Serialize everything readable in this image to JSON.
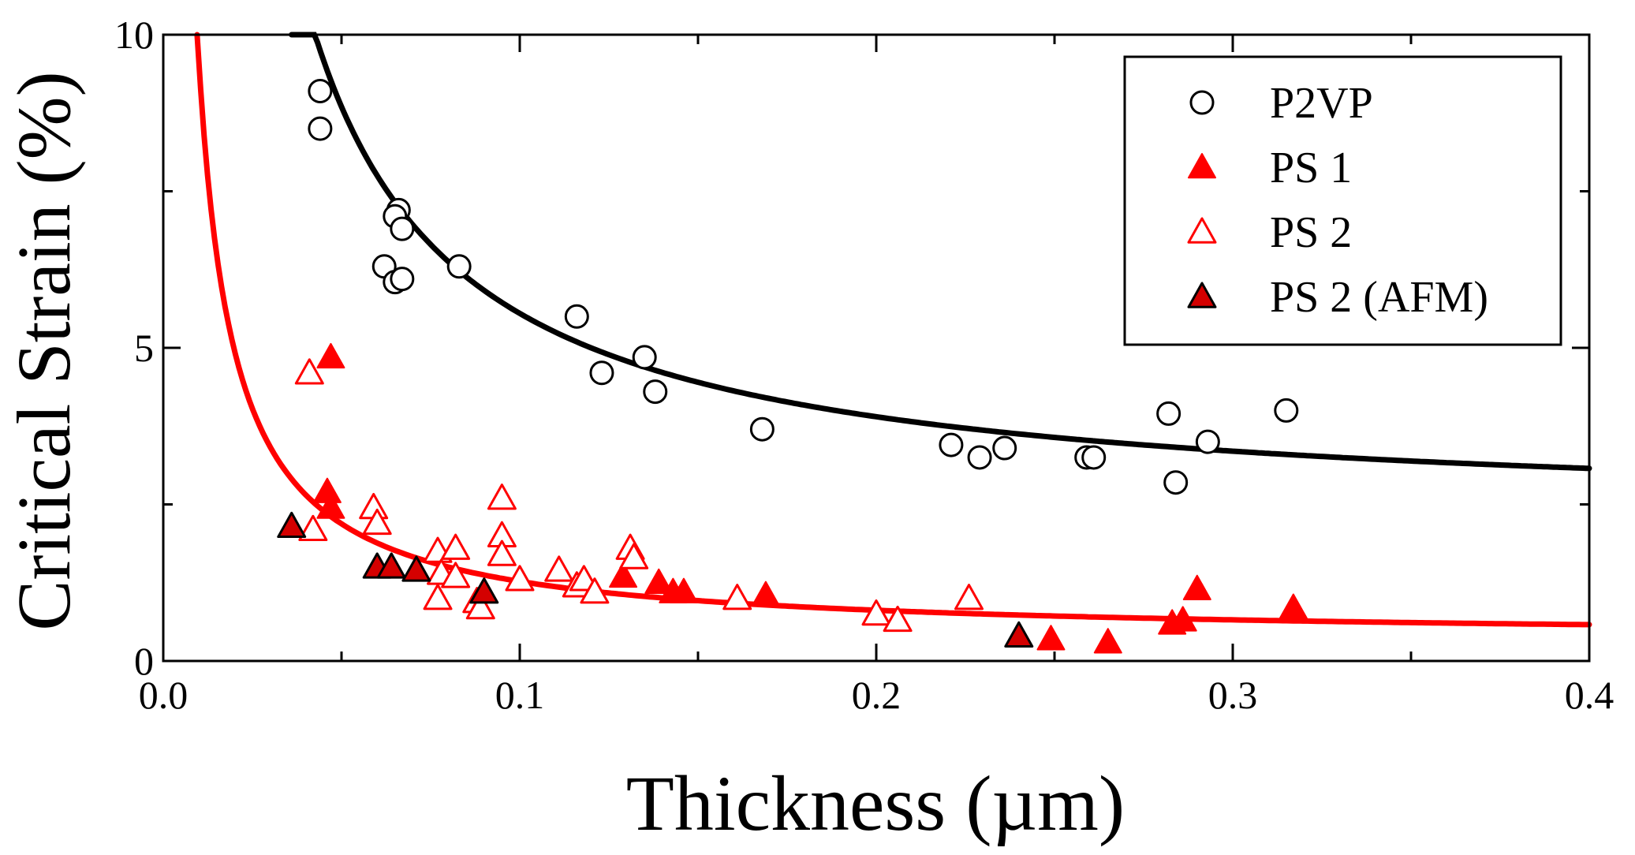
{
  "chart_data": {
    "type": "scatter",
    "title": "",
    "xlabel": "Thickness (µm)",
    "ylabel": "Critical Strain (%)",
    "xlim": [
      0.0,
      0.4
    ],
    "ylim": [
      0,
      10
    ],
    "xticks": [
      0.0,
      0.1,
      0.2,
      0.3,
      0.4
    ],
    "xtick_labels": [
      "0.0",
      "0.1",
      "0.2",
      "0.3",
      "0.4"
    ],
    "yticks": [
      0,
      5,
      10
    ],
    "ytick_labels": [
      "0",
      "5",
      "10"
    ],
    "legend_position": "top-right",
    "series": [
      {
        "name": "P2VP",
        "marker": "open-circle",
        "color": "#000000",
        "points": [
          [
            0.044,
            9.1
          ],
          [
            0.044,
            8.5
          ],
          [
            0.066,
            7.2
          ],
          [
            0.065,
            7.1
          ],
          [
            0.067,
            6.9
          ],
          [
            0.062,
            6.3
          ],
          [
            0.065,
            6.05
          ],
          [
            0.067,
            6.1
          ],
          [
            0.083,
            6.3
          ],
          [
            0.116,
            5.5
          ],
          [
            0.123,
            4.6
          ],
          [
            0.135,
            4.85
          ],
          [
            0.138,
            4.3
          ],
          [
            0.168,
            3.7
          ],
          [
            0.221,
            3.45
          ],
          [
            0.229,
            3.25
          ],
          [
            0.236,
            3.4
          ],
          [
            0.259,
            3.25
          ],
          [
            0.261,
            3.25
          ],
          [
            0.282,
            3.95
          ],
          [
            0.284,
            2.85
          ],
          [
            0.293,
            3.5
          ],
          [
            0.315,
            4.0
          ]
        ]
      },
      {
        "name": "PS 1",
        "marker": "filled-triangle",
        "color": "#ff0000",
        "points": [
          [
            0.047,
            4.85
          ],
          [
            0.046,
            2.7
          ],
          [
            0.047,
            2.45
          ],
          [
            0.129,
            1.35
          ],
          [
            0.139,
            1.25
          ],
          [
            0.143,
            1.1
          ],
          [
            0.146,
            1.1
          ],
          [
            0.169,
            1.05
          ],
          [
            0.249,
            0.35
          ],
          [
            0.265,
            0.3
          ],
          [
            0.283,
            0.6
          ],
          [
            0.286,
            0.65
          ],
          [
            0.29,
            1.15
          ],
          [
            0.317,
            0.85
          ]
        ]
      },
      {
        "name": "PS 2",
        "marker": "open-triangle",
        "color": "#ff0000",
        "points": [
          [
            0.041,
            4.6
          ],
          [
            0.042,
            2.1
          ],
          [
            0.059,
            2.45
          ],
          [
            0.06,
            2.2
          ],
          [
            0.077,
            1.75
          ],
          [
            0.078,
            1.4
          ],
          [
            0.082,
            1.8
          ],
          [
            0.082,
            1.35
          ],
          [
            0.077,
            1.0
          ],
          [
            0.088,
            0.95
          ],
          [
            0.089,
            0.85
          ],
          [
            0.095,
            2.6
          ],
          [
            0.095,
            2.0
          ],
          [
            0.095,
            1.7
          ],
          [
            0.1,
            1.3
          ],
          [
            0.111,
            1.45
          ],
          [
            0.116,
            1.2
          ],
          [
            0.118,
            1.3
          ],
          [
            0.121,
            1.1
          ],
          [
            0.131,
            1.8
          ],
          [
            0.132,
            1.65
          ],
          [
            0.161,
            1.0
          ],
          [
            0.2,
            0.75
          ],
          [
            0.206,
            0.65
          ],
          [
            0.226,
            1.0
          ]
        ]
      },
      {
        "name": "PS 2 (AFM)",
        "marker": "dark-red-triangle",
        "color": "#d40000",
        "points": [
          [
            0.036,
            2.15
          ],
          [
            0.06,
            1.5
          ],
          [
            0.064,
            1.5
          ],
          [
            0.071,
            1.45
          ],
          [
            0.09,
            1.1
          ],
          [
            0.24,
            0.4
          ]
        ]
      }
    ],
    "fit_curves": [
      {
        "name": "P2VP fit",
        "color": "#000000",
        "model": "a + b / x",
        "a": 2.25,
        "b": 0.33,
        "x_range": [
          0.036,
          0.4
        ]
      },
      {
        "name": "PS fit",
        "color": "#ff0000",
        "model": "a + b / x",
        "a": 0.35,
        "b": 0.092,
        "x_range": [
          0.0095,
          0.4
        ]
      }
    ]
  }
}
